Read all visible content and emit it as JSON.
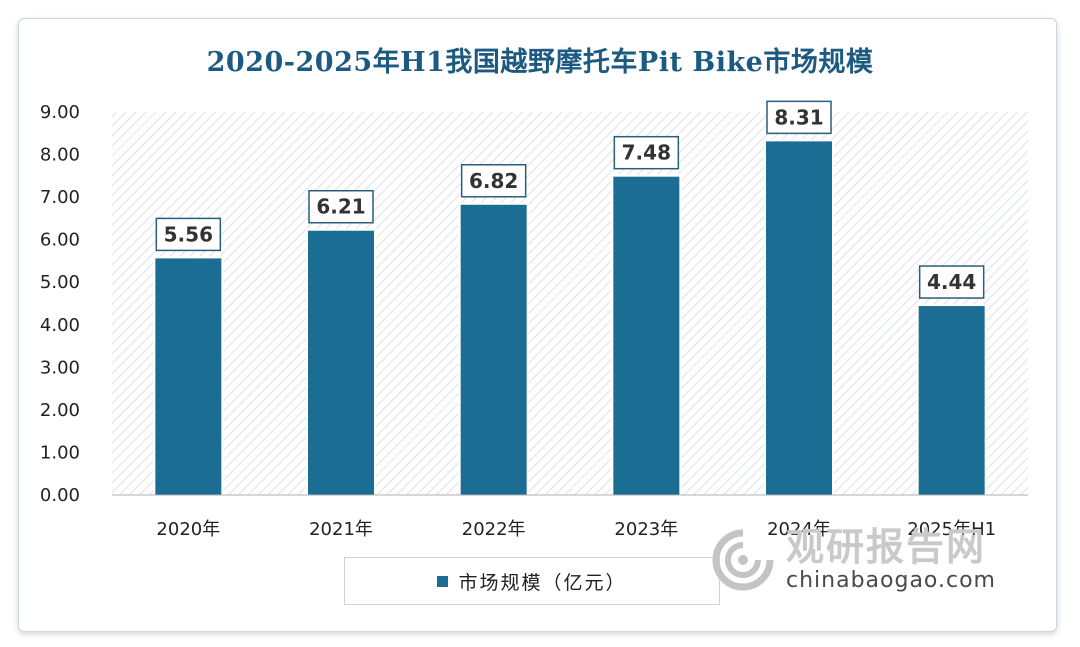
{
  "chart_data": {
    "type": "bar",
    "title": "2020-2025年H1我国越野摩托车Pit Bike市场规模",
    "categories": [
      "2020年",
      "2021年",
      "2022年",
      "2023年",
      "2024年",
      "2025年H1"
    ],
    "series": [
      {
        "name": "市场规模（亿元）",
        "values": [
          5.56,
          6.21,
          6.82,
          7.48,
          8.31,
          4.44
        ]
      }
    ],
    "value_labels": [
      "5.56",
      "6.21",
      "6.82",
      "7.48",
      "8.31",
      "4.44"
    ],
    "yticks": [
      "0.00",
      "1.00",
      "2.00",
      "3.00",
      "4.00",
      "5.00",
      "6.00",
      "7.00",
      "8.00",
      "9.00"
    ],
    "ylim": [
      0,
      9
    ],
    "xlabel": "",
    "ylabel": "",
    "legend": "bottom",
    "bar_color": "#1b6d94"
  },
  "legend": {
    "label": "市场规模（亿元）"
  },
  "watermark": {
    "cn": "观研报告网",
    "en": "chinabaogao.com"
  }
}
